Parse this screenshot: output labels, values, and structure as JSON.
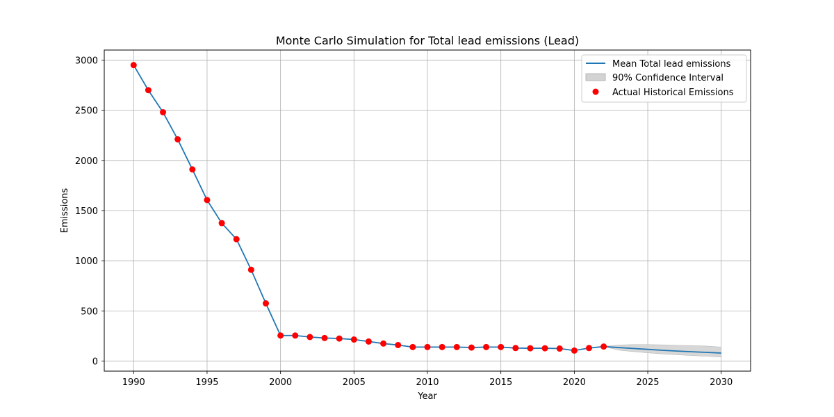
{
  "chart_data": {
    "type": "line",
    "title": "Monte Carlo Simulation for Total lead emissions (Lead)",
    "xlabel": "Year",
    "ylabel": "Emissions",
    "xlim": [
      1988,
      2032
    ],
    "ylim": [
      -100,
      3100
    ],
    "xticks": [
      1990,
      1995,
      2000,
      2005,
      2010,
      2015,
      2020,
      2025,
      2030
    ],
    "yticks": [
      0,
      500,
      1000,
      1500,
      2000,
      2500,
      3000
    ],
    "grid": true,
    "legend_position": "top-right",
    "legend": {
      "mean_label": "Mean Total lead emissions",
      "ci_label": "90% Confidence Interval",
      "actual_label": "Actual Historical Emissions"
    },
    "colors": {
      "mean_line": "#1f77b4",
      "ci_fill": "#d3d3d3",
      "actual_points": "#ff0000",
      "grid": "#b0b0b0"
    },
    "series": [
      {
        "name": "Mean Total lead emissions",
        "kind": "line",
        "x": [
          1990,
          1991,
          1992,
          1993,
          1994,
          1995,
          1996,
          1997,
          1998,
          1999,
          2000,
          2001,
          2002,
          2003,
          2004,
          2005,
          2006,
          2007,
          2008,
          2009,
          2010,
          2011,
          2012,
          2013,
          2014,
          2015,
          2016,
          2017,
          2018,
          2019,
          2020,
          2021,
          2022,
          2023,
          2024,
          2025,
          2026,
          2027,
          2028,
          2029,
          2030
        ],
        "values": [
          2950,
          2700,
          2480,
          2210,
          1910,
          1605,
          1375,
          1215,
          910,
          575,
          255,
          255,
          240,
          230,
          225,
          215,
          195,
          175,
          160,
          140,
          140,
          140,
          140,
          135,
          140,
          140,
          130,
          128,
          128,
          125,
          105,
          130,
          145,
          135,
          126,
          117,
          108,
          100,
          93,
          87,
          80
        ]
      },
      {
        "name": "90% Confidence Interval",
        "kind": "band",
        "x": [
          2022,
          2023,
          2024,
          2025,
          2026,
          2027,
          2028,
          2029,
          2030
        ],
        "lower": [
          145,
          110,
          95,
          82,
          72,
          63,
          55,
          48,
          40
        ],
        "upper": [
          145,
          160,
          165,
          165,
          162,
          158,
          154,
          150,
          140
        ]
      },
      {
        "name": "Actual Historical Emissions",
        "kind": "scatter",
        "x": [
          1990,
          1991,
          1992,
          1993,
          1994,
          1995,
          1996,
          1997,
          1998,
          1999,
          2000,
          2001,
          2002,
          2003,
          2004,
          2005,
          2006,
          2007,
          2008,
          2009,
          2010,
          2011,
          2012,
          2013,
          2014,
          2015,
          2016,
          2017,
          2018,
          2019,
          2020,
          2021,
          2022
        ],
        "values": [
          2950,
          2700,
          2480,
          2210,
          1910,
          1605,
          1375,
          1215,
          910,
          575,
          255,
          255,
          240,
          230,
          225,
          215,
          195,
          175,
          160,
          140,
          140,
          140,
          140,
          135,
          140,
          140,
          130,
          128,
          128,
          125,
          105,
          130,
          145
        ]
      }
    ]
  }
}
